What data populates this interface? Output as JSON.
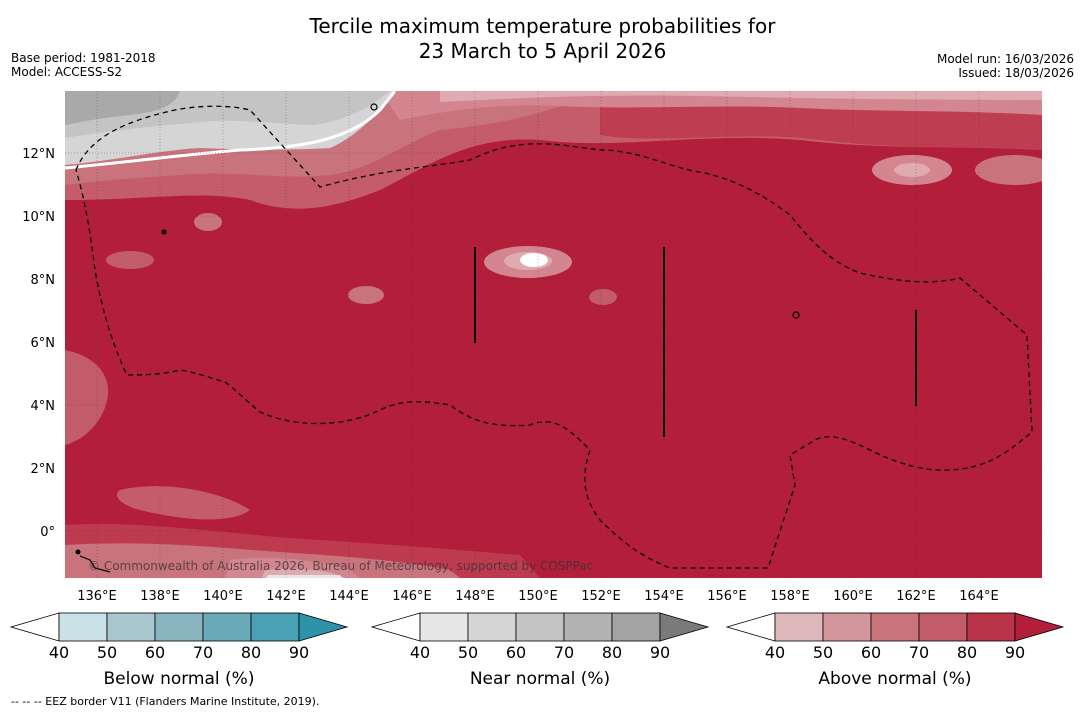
{
  "header": {
    "title_line1": "Tercile maximum temperature probabilities for",
    "title_line2": "23 March to 5 April 2026",
    "base_period": "Base period: 1981-2018",
    "model": "Model: ACCESS-S2",
    "model_run": "Model run: 16/03/2026",
    "issued": "Issued: 18/03/2026"
  },
  "map": {
    "lat_labels": [
      "12°N",
      "10°N",
      "8°N",
      "6°N",
      "4°N",
      "2°N",
      "0°"
    ],
    "lon_labels": [
      "136°E",
      "138°E",
      "140°E",
      "142°E",
      "144°E",
      "146°E",
      "148°E",
      "150°E",
      "152°E",
      "154°E",
      "156°E",
      "158°E",
      "160°E",
      "162°E",
      "164°E"
    ],
    "copyright": "© Commonwealth of Australia 2026, Bureau of Meteorology, supported by COSPPac",
    "colors": {
      "above_dominant": "#b31e3a",
      "above_80": "#bd3a4f",
      "above_70": "#c55c6a",
      "above_60": "#d3868f",
      "above_50": "#dfabb0",
      "near_60": "#c4c4c4",
      "near_50": "#d5d5d5",
      "near_40": "#e7e7e7"
    }
  },
  "colorbars": {
    "ticks": [
      "40",
      "50",
      "60",
      "70",
      "80",
      "90"
    ],
    "below": {
      "label": "Below normal (%)",
      "colors": [
        "#ffffff",
        "#c9e1e7",
        "#a9c7cf",
        "#89b5c0",
        "#6aabba",
        "#4aa1b3",
        "#2d93a8"
      ]
    },
    "near": {
      "label": "Near normal (%)",
      "colors": [
        "#ffffff",
        "#e6e6e6",
        "#d5d5d5",
        "#c4c4c4",
        "#b3b3b3",
        "#a3a3a3",
        "#7a7a7a"
      ]
    },
    "above": {
      "label": "Above normal (%)",
      "colors": [
        "#ffffff",
        "#dfb8bc",
        "#d3969c",
        "#c9747d",
        "#c35c69",
        "#b93449",
        "#b31e3a"
      ]
    }
  },
  "footnote": "--  --  -- EEZ border V11 (Flanders Marine Institute, 2019)."
}
